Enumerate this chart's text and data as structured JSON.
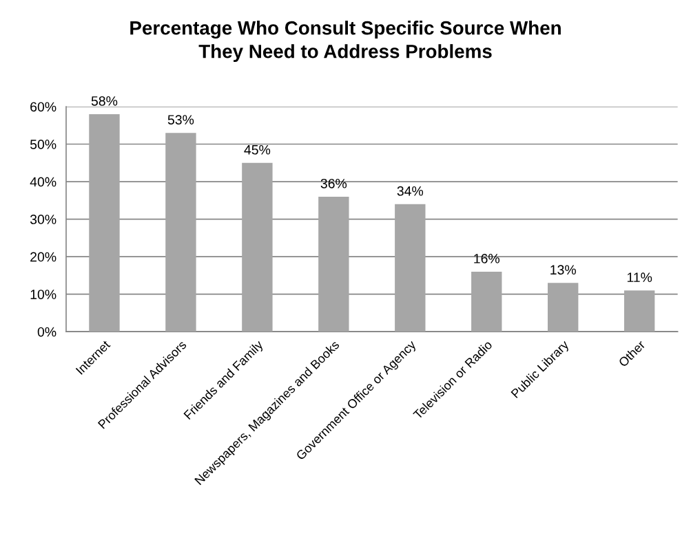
{
  "chart_data": {
    "type": "bar",
    "title": "Percentage Who Consult Specific Source When\nThey Need to Address Problems",
    "categories": [
      "Internet",
      "Professional Advisors",
      "Friends and Family",
      "Newspapers, Magazines and Books",
      "Government Office or Agency",
      "Television or Radio",
      "Public Library",
      "Other"
    ],
    "values": [
      58,
      53,
      45,
      36,
      34,
      16,
      13,
      11
    ],
    "color": "#a6a6a6",
    "value_labels": [
      "58%",
      "53%",
      "45%",
      "36%",
      "34%",
      "16%",
      "13%",
      "11%"
    ],
    "ylim": [
      0,
      60
    ],
    "yticks": [
      {
        "value": 0,
        "label": "0%"
      },
      {
        "value": 10,
        "label": "10%"
      },
      {
        "value": 20,
        "label": "20%"
      },
      {
        "value": 30,
        "label": "30%"
      },
      {
        "value": 40,
        "label": "40%"
      },
      {
        "value": 50,
        "label": "50%"
      },
      {
        "value": 60,
        "label": "60%"
      }
    ],
    "grid": "y",
    "legend": false
  }
}
